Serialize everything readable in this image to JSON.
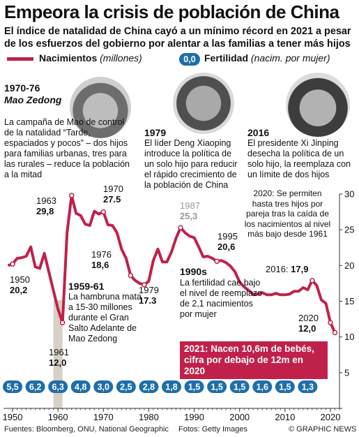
{
  "header": {
    "title": "Empeora la crisis de población de China",
    "subtitle": "El índice de natalidad de China cayó a un mínimo récord en 2021 a pesar de los esfuerzos del gobierno por alentar a las familias a tener más hijos"
  },
  "legend": {
    "births_label": "Nacimientos",
    "births_unit": "(millones)",
    "fertility_badge": "0,0",
    "fertility_label": "Fertilidad",
    "fertility_unit": "(nacim. por mujer)"
  },
  "annotations": {
    "mao": {
      "years": "1970-76",
      "name": "Mao Zedong",
      "text": "La campaña de Mao de control de la natalidad “Tarde, espaciados y pocos” – dos hijos para familias urbanas, tres para las rurales – reduce la población a la mitad"
    },
    "deng": {
      "year": "1979",
      "text": "El líder Deng Xiaoping introduce la política de un solo hijo para reducir el rápido crecimiento de la población de China"
    },
    "xi": {
      "year": "2016",
      "text": "El presidente Xi Jinping desecha la política de un solo hijo, la reemplaza con un límite de dos hijos"
    },
    "y2020_policy": "2020: Se permiten hasta tres hijos por pareja tras la caída de los nacimientos al nivel más bajo desde 1961",
    "famine": {
      "years": "1959-61",
      "text": "La hambruna mata a 15-30 millones durante el Gran Salto Adelante de Mao Zedong"
    },
    "nineties": {
      "years": "1990s",
      "text": "La fertilidad cae bajo el nivel de reemplazo de 2,1 nacimientos por mujer"
    },
    "callout": "2021: Nacen 10,6m de bebés, cifra por debajo de 12m en 2020"
  },
  "point_labels": [
    {
      "year": "1950",
      "value": "20,2"
    },
    {
      "year": "1961",
      "value": "12,0"
    },
    {
      "year": "1963",
      "value": "29,8"
    },
    {
      "year": "1970",
      "value": "27.5"
    },
    {
      "year": "1976",
      "value": "18,6"
    },
    {
      "year": "1979",
      "value": "17.3"
    },
    {
      "year": "1987",
      "value": "25,3"
    },
    {
      "year": "1995",
      "value": "20,6"
    },
    {
      "year": "2016:",
      "value": "17,9"
    },
    {
      "year": "2020",
      "value": "12,0"
    }
  ],
  "chart_data": {
    "type": "line",
    "x_ticks": [
      "1950",
      "1960",
      "1970",
      "1980",
      "1990",
      "2000",
      "2010",
      "2020"
    ],
    "y_ticks": [
      "0",
      "5",
      "10",
      "15",
      "20",
      "25",
      "30"
    ],
    "xlim": [
      1948,
      2022
    ],
    "ylim": [
      0,
      30
    ],
    "series": [
      {
        "name": "Nacimientos",
        "color": "#c0214a",
        "points": [
          [
            1949,
            20.0
          ],
          [
            1950,
            20.2
          ],
          [
            1951,
            21.0
          ],
          [
            1952,
            21.1
          ],
          [
            1953,
            21.3
          ],
          [
            1954,
            22.6
          ],
          [
            1955,
            19.8
          ],
          [
            1956,
            19.6
          ],
          [
            1957,
            21.7
          ],
          [
            1958,
            19.1
          ],
          [
            1959,
            16.5
          ],
          [
            1960,
            13.9
          ],
          [
            1961,
            12.0
          ],
          [
            1962,
            24.6
          ],
          [
            1963,
            29.8
          ],
          [
            1964,
            27.3
          ],
          [
            1965,
            27.0
          ],
          [
            1966,
            25.8
          ],
          [
            1967,
            25.6
          ],
          [
            1968,
            27.6
          ],
          [
            1969,
            27.2
          ],
          [
            1970,
            27.5
          ],
          [
            1971,
            25.7
          ],
          [
            1972,
            25.6
          ],
          [
            1973,
            24.6
          ],
          [
            1974,
            22.3
          ],
          [
            1975,
            21.0
          ],
          [
            1976,
            18.6
          ],
          [
            1977,
            17.9
          ],
          [
            1978,
            17.5
          ],
          [
            1979,
            17.3
          ],
          [
            1980,
            17.8
          ],
          [
            1981,
            20.7
          ],
          [
            1982,
            22.3
          ],
          [
            1983,
            20.5
          ],
          [
            1984,
            20.5
          ],
          [
            1985,
            21.9
          ],
          [
            1986,
            23.8
          ],
          [
            1987,
            25.3
          ],
          [
            1988,
            24.6
          ],
          [
            1989,
            24.1
          ],
          [
            1990,
            23.9
          ],
          [
            1991,
            22.6
          ],
          [
            1992,
            21.2
          ],
          [
            1993,
            21.3
          ],
          [
            1994,
            21.0
          ],
          [
            1995,
            20.6
          ],
          [
            1996,
            20.7
          ],
          [
            1997,
            20.4
          ],
          [
            1998,
            19.9
          ],
          [
            1999,
            19.1
          ],
          [
            2000,
            17.7
          ],
          [
            2001,
            17.0
          ],
          [
            2002,
            16.5
          ],
          [
            2003,
            16.0
          ],
          [
            2004,
            16.0
          ],
          [
            2005,
            16.2
          ],
          [
            2006,
            15.9
          ],
          [
            2007,
            15.9
          ],
          [
            2008,
            16.1
          ],
          [
            2009,
            15.9
          ],
          [
            2010,
            15.9
          ],
          [
            2011,
            16.0
          ],
          [
            2012,
            16.4
          ],
          [
            2013,
            16.4
          ],
          [
            2014,
            16.9
          ],
          [
            2015,
            16.6
          ],
          [
            2016,
            17.9
          ],
          [
            2017,
            17.2
          ],
          [
            2018,
            15.2
          ],
          [
            2019,
            14.7
          ],
          [
            2020,
            12.0
          ],
          [
            2021,
            10.6
          ]
        ]
      }
    ],
    "fertility_rates": [
      {
        "year": 1950,
        "label": "5,5"
      },
      {
        "year": 1955,
        "label": "6,2"
      },
      {
        "year": 1960,
        "label": "6,3"
      },
      {
        "year": 1965,
        "label": "4,8"
      },
      {
        "year": 1970,
        "label": "3,0"
      },
      {
        "year": 1975,
        "label": "2,5"
      },
      {
        "year": 1980,
        "label": "2,8"
      },
      {
        "year": 1985,
        "label": "1,8"
      },
      {
        "year": 1990,
        "label": "1,5"
      },
      {
        "year": 1995,
        "label": "1,5"
      },
      {
        "year": 2000,
        "label": "1,5"
      },
      {
        "year": 2005,
        "label": "1,6"
      },
      {
        "year": 2010,
        "label": "1,5"
      },
      {
        "year": 2015,
        "label": "1,3"
      }
    ],
    "shaded_period": [
      1959,
      1961
    ],
    "grid": false,
    "y_axis_side": "right"
  },
  "footer": {
    "sources": "Fuentes: Bloomberg, ONU, National Geographic",
    "photos": "Fotos: Getty Images",
    "copyright": "© GRAPHIC NEWS"
  },
  "colors": {
    "line": "#c0214a",
    "badge": "#1f6ea8",
    "shade": "#d7d0c4",
    "callout": "#c0214a"
  }
}
